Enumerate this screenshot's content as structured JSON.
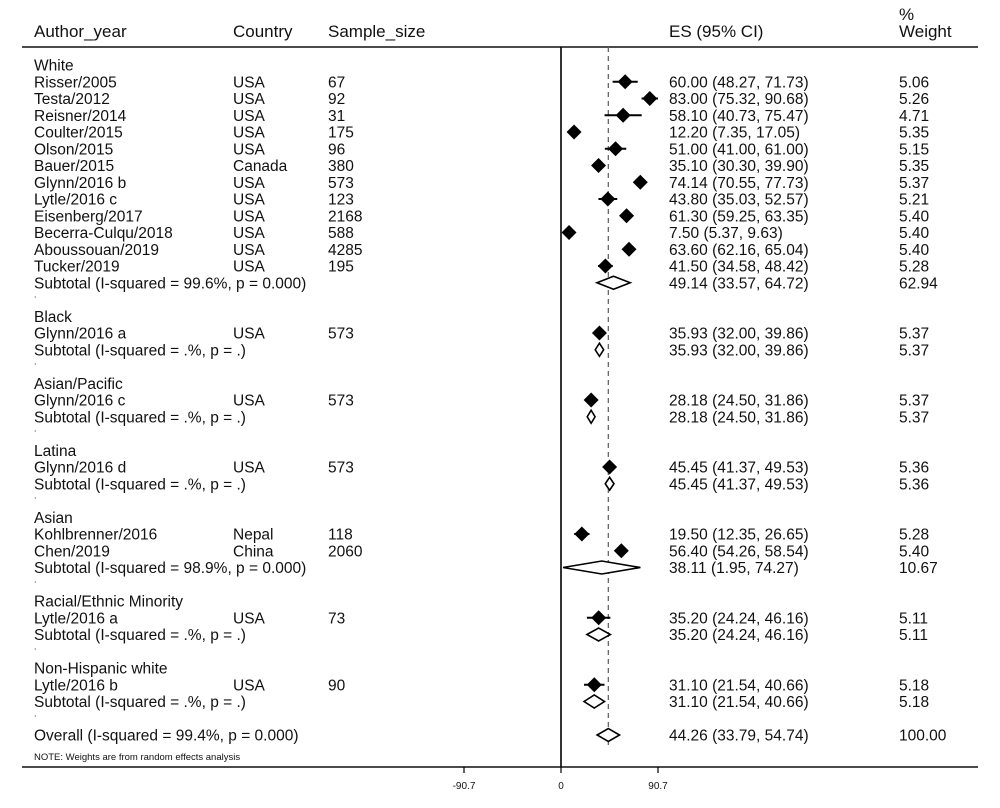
{
  "header": {
    "author": "Author_year",
    "country": "Country",
    "sample": "Sample_size",
    "es": "ES (95% CI)",
    "weight_line1": "%",
    "weight_line2": "Weight"
  },
  "footer": {
    "note": "NOTE: Weights are from random effects analysis"
  },
  "colors": {
    "ink": "#111111",
    "reference_line": "#666666",
    "marker": "#000000"
  },
  "chart_data": {
    "type": "forest",
    "x_ticks": [
      {
        "value": -90.7,
        "label": "-90.7"
      },
      {
        "value": 0,
        "label": "0"
      },
      {
        "value": 90.7,
        "label": "90.7"
      }
    ],
    "xlim": [
      -90.7,
      90.7
    ],
    "overall_reference_value": 44.26,
    "rows": [
      {
        "kind": "group",
        "label": "White"
      },
      {
        "kind": "study",
        "author": "Risser/2005",
        "country": "USA",
        "n": "67",
        "es": 60.0,
        "lo": 48.27,
        "hi": 71.73,
        "ci_text": "60.00 (48.27, 71.73)",
        "weight": "5.06"
      },
      {
        "kind": "study",
        "author": "Testa/2012",
        "country": "USA",
        "n": "92",
        "es": 83.0,
        "lo": 75.32,
        "hi": 90.68,
        "ci_text": "83.00 (75.32, 90.68)",
        "weight": "5.26"
      },
      {
        "kind": "study",
        "author": "Reisner/2014",
        "country": "USA",
        "n": "31",
        "es": 58.1,
        "lo": 40.73,
        "hi": 75.47,
        "ci_text": "58.10 (40.73, 75.47)",
        "weight": "4.71"
      },
      {
        "kind": "study",
        "author": "Coulter/2015",
        "country": "USA",
        "n": "175",
        "es": 12.2,
        "lo": 7.35,
        "hi": 17.05,
        "ci_text": "12.20 (7.35, 17.05)",
        "weight": "5.35"
      },
      {
        "kind": "study",
        "author": "Olson/2015",
        "country": "USA",
        "n": "96",
        "es": 51.0,
        "lo": 41.0,
        "hi": 61.0,
        "ci_text": "51.00 (41.00, 61.00)",
        "weight": "5.15"
      },
      {
        "kind": "study",
        "author": "Bauer/2015",
        "country": "Canada",
        "n": "380",
        "es": 35.1,
        "lo": 30.3,
        "hi": 39.9,
        "ci_text": "35.10 (30.30, 39.90)",
        "weight": "5.35"
      },
      {
        "kind": "study",
        "author": "Glynn/2016 b",
        "country": "USA",
        "n": "573",
        "es": 74.14,
        "lo": 70.55,
        "hi": 77.73,
        "ci_text": "74.14 (70.55, 77.73)",
        "weight": "5.37"
      },
      {
        "kind": "study",
        "author": "Lytle/2016 c",
        "country": "USA",
        "n": "123",
        "es": 43.8,
        "lo": 35.03,
        "hi": 52.57,
        "ci_text": "43.80 (35.03, 52.57)",
        "weight": "5.21"
      },
      {
        "kind": "study",
        "author": "Eisenberg/2017",
        "country": "USA",
        "n": "2168",
        "es": 61.3,
        "lo": 59.25,
        "hi": 63.35,
        "ci_text": "61.30 (59.25, 63.35)",
        "weight": "5.40"
      },
      {
        "kind": "study",
        "author": "Becerra-Culqu/2018",
        "country": "USA",
        "n": "588",
        "es": 7.5,
        "lo": 5.37,
        "hi": 9.63,
        "ci_text": "7.50 (5.37, 9.63)",
        "weight": "5.40"
      },
      {
        "kind": "study",
        "author": "Aboussouan/2019",
        "country": "USA",
        "n": "4285",
        "es": 63.6,
        "lo": 62.16,
        "hi": 65.04,
        "ci_text": "63.60 (62.16, 65.04)",
        "weight": "5.40"
      },
      {
        "kind": "study",
        "author": "Tucker/2019",
        "country": "USA",
        "n": "195",
        "es": 41.5,
        "lo": 34.58,
        "hi": 48.42,
        "ci_text": "41.50 (34.58, 48.42)",
        "weight": "5.28"
      },
      {
        "kind": "subtotal",
        "label": "Subtotal  (I-squared = 99.6%, p = 0.000)",
        "es": 49.14,
        "lo": 33.57,
        "hi": 64.72,
        "ci_text": "49.14 (33.57, 64.72)",
        "weight": "62.94"
      },
      {
        "kind": "spacer",
        "label": "."
      },
      {
        "kind": "group",
        "label": "Black"
      },
      {
        "kind": "study",
        "author": "Glynn/2016 a",
        "country": "USA",
        "n": "573",
        "es": 35.93,
        "lo": 32.0,
        "hi": 39.86,
        "ci_text": "35.93 (32.00, 39.86)",
        "weight": "5.37"
      },
      {
        "kind": "subtotal",
        "label": "Subtotal  (I-squared = .%, p = .)",
        "es": 35.93,
        "lo": 32.0,
        "hi": 39.86,
        "ci_text": "35.93 (32.00, 39.86)",
        "weight": "5.37"
      },
      {
        "kind": "spacer",
        "label": "."
      },
      {
        "kind": "group",
        "label": "Asian/Pacific"
      },
      {
        "kind": "study",
        "author": "Glynn/2016 c",
        "country": "USA",
        "n": "573",
        "es": 28.18,
        "lo": 24.5,
        "hi": 31.86,
        "ci_text": "28.18 (24.50, 31.86)",
        "weight": "5.37"
      },
      {
        "kind": "subtotal",
        "label": "Subtotal  (I-squared = .%, p = .)",
        "es": 28.18,
        "lo": 24.5,
        "hi": 31.86,
        "ci_text": "28.18 (24.50, 31.86)",
        "weight": "5.37"
      },
      {
        "kind": "spacer",
        "label": "."
      },
      {
        "kind": "group",
        "label": "Latina"
      },
      {
        "kind": "study",
        "author": "Glynn/2016 d",
        "country": "USA",
        "n": "573",
        "es": 45.45,
        "lo": 41.37,
        "hi": 49.53,
        "ci_text": "45.45 (41.37, 49.53)",
        "weight": "5.36"
      },
      {
        "kind": "subtotal",
        "label": "Subtotal  (I-squared = .%, p = .)",
        "es": 45.45,
        "lo": 41.37,
        "hi": 49.53,
        "ci_text": "45.45 (41.37, 49.53)",
        "weight": "5.36"
      },
      {
        "kind": "spacer",
        "label": "."
      },
      {
        "kind": "group",
        "label": "Asian"
      },
      {
        "kind": "study",
        "author": "Kohlbrenner/2016",
        "country": "Nepal",
        "n": "118",
        "es": 19.5,
        "lo": 12.35,
        "hi": 26.65,
        "ci_text": "19.50 (12.35, 26.65)",
        "weight": "5.28"
      },
      {
        "kind": "study",
        "author": "Chen/2019",
        "country": "China",
        "n": "2060",
        "es": 56.4,
        "lo": 54.26,
        "hi": 58.54,
        "ci_text": "56.40 (54.26, 58.54)",
        "weight": "5.40"
      },
      {
        "kind": "subtotal",
        "label": "Subtotal  (I-squared = 98.9%, p = 0.000)",
        "es": 38.11,
        "lo": 1.95,
        "hi": 74.27,
        "ci_text": "38.11 (1.95, 74.27)",
        "weight": "10.67"
      },
      {
        "kind": "spacer",
        "label": "."
      },
      {
        "kind": "group",
        "label": "Racial/Ethnic Minority"
      },
      {
        "kind": "study",
        "author": "Lytle/2016 a",
        "country": "USA",
        "n": "73",
        "es": 35.2,
        "lo": 24.24,
        "hi": 46.16,
        "ci_text": "35.20 (24.24, 46.16)",
        "weight": "5.11"
      },
      {
        "kind": "subtotal",
        "label": "Subtotal  (I-squared = .%, p = .)",
        "es": 35.2,
        "lo": 24.24,
        "hi": 46.16,
        "ci_text": "35.20 (24.24, 46.16)",
        "weight": "5.11"
      },
      {
        "kind": "spacer",
        "label": "."
      },
      {
        "kind": "group",
        "label": "Non-Hispanic white"
      },
      {
        "kind": "study",
        "author": "Lytle/2016 b",
        "country": "USA",
        "n": "90",
        "es": 31.1,
        "lo": 21.54,
        "hi": 40.66,
        "ci_text": "31.10 (21.54, 40.66)",
        "weight": "5.18"
      },
      {
        "kind": "subtotal",
        "label": "Subtotal  (I-squared = .%, p = .)",
        "es": 31.1,
        "lo": 21.54,
        "hi": 40.66,
        "ci_text": "31.10 (21.54, 40.66)",
        "weight": "5.18"
      },
      {
        "kind": "spacer",
        "label": "."
      },
      {
        "kind": "overall",
        "label": "Overall  (I-squared = 99.4%, p = 0.000)",
        "es": 44.26,
        "lo": 33.79,
        "hi": 54.74,
        "ci_text": "44.26 (33.79, 54.74)",
        "weight": "100.00"
      }
    ]
  }
}
